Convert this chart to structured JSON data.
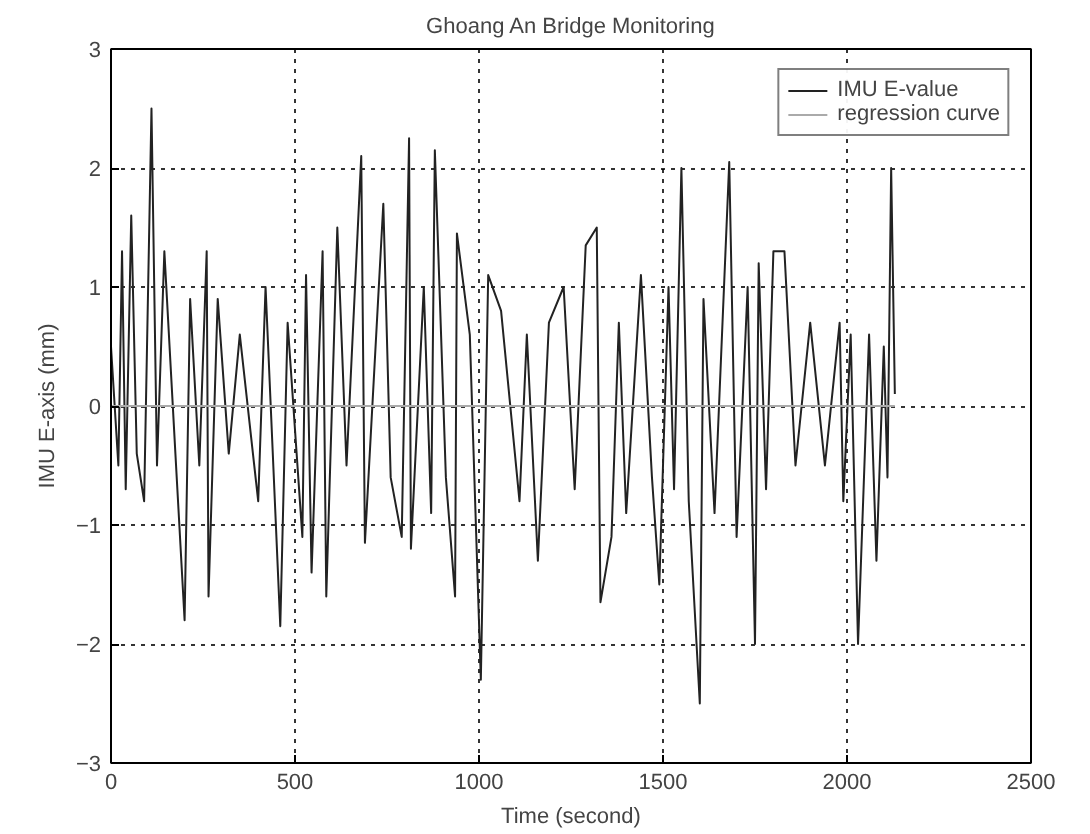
{
  "chart_data": {
    "type": "line",
    "title": "Ghoang An Bridge Monitoring",
    "xlabel": "Time (second)",
    "ylabel": "IMU E-axis (mm)",
    "xlim": [
      0,
      2500
    ],
    "xticks": [
      0,
      500,
      1000,
      1500,
      2000,
      2500
    ],
    "ylim": [
      -3,
      3
    ],
    "yticks": [
      -3,
      -2,
      -1,
      0,
      1,
      2,
      3
    ],
    "grid": true,
    "legend": "top right",
    "line_style": "solid",
    "marker": "none",
    "series": [
      {
        "name": "IMU E-value",
        "color": "#222222",
        "x": [
          0,
          20,
          30,
          40,
          55,
          70,
          90,
          110,
          125,
          145,
          175,
          200,
          215,
          240,
          260,
          265,
          290,
          320,
          350,
          400,
          420,
          460,
          480,
          520,
          530,
          545,
          575,
          585,
          615,
          640,
          680,
          690,
          740,
          760,
          790,
          810,
          815,
          850,
          870,
          880,
          910,
          935,
          940,
          975,
          1005,
          1025,
          1060,
          1110,
          1130,
          1160,
          1190,
          1230,
          1260,
          1290,
          1320,
          1330,
          1360,
          1380,
          1400,
          1440,
          1470,
          1490,
          1515,
          1530,
          1550,
          1570,
          1600,
          1610,
          1640,
          1680,
          1700,
          1730,
          1750,
          1760,
          1780,
          1800,
          1830,
          1860,
          1900,
          1940,
          1980,
          1990,
          2010,
          2030,
          2060,
          2080,
          2100,
          2110,
          2120,
          2130
        ],
        "values": [
          0.5,
          -0.5,
          1.3,
          -0.7,
          1.6,
          -0.4,
          -0.8,
          2.5,
          -0.5,
          1.3,
          -0.4,
          -1.8,
          0.9,
          -0.5,
          1.3,
          -1.6,
          0.9,
          -0.4,
          0.6,
          -0.8,
          1.0,
          -1.85,
          0.7,
          -1.1,
          1.1,
          -1.4,
          1.3,
          -1.6,
          1.5,
          -0.5,
          2.1,
          -1.15,
          1.7,
          -0.6,
          -1.1,
          2.25,
          -1.2,
          1.0,
          -0.9,
          2.15,
          -0.6,
          -1.6,
          1.45,
          0.6,
          -2.3,
          1.1,
          0.8,
          -0.8,
          0.6,
          -1.3,
          0.7,
          1.0,
          -0.7,
          1.35,
          1.5,
          -1.65,
          -1.1,
          0.7,
          -0.9,
          1.1,
          -0.6,
          -1.5,
          1.0,
          -0.7,
          2.0,
          -0.8,
          -2.5,
          0.9,
          -0.9,
          2.05,
          -1.1,
          1.0,
          -2.0,
          1.2,
          -0.7,
          1.3,
          1.3,
          -0.5,
          0.7,
          -0.5,
          0.7,
          -0.8,
          0.6,
          -2.0,
          0.6,
          -1.3,
          0.5,
          -0.6,
          2.0,
          0.1
        ]
      },
      {
        "name": "regression curve",
        "color": "#aaaaaa",
        "x": [
          0,
          2130
        ],
        "values": [
          0,
          0
        ]
      }
    ]
  }
}
